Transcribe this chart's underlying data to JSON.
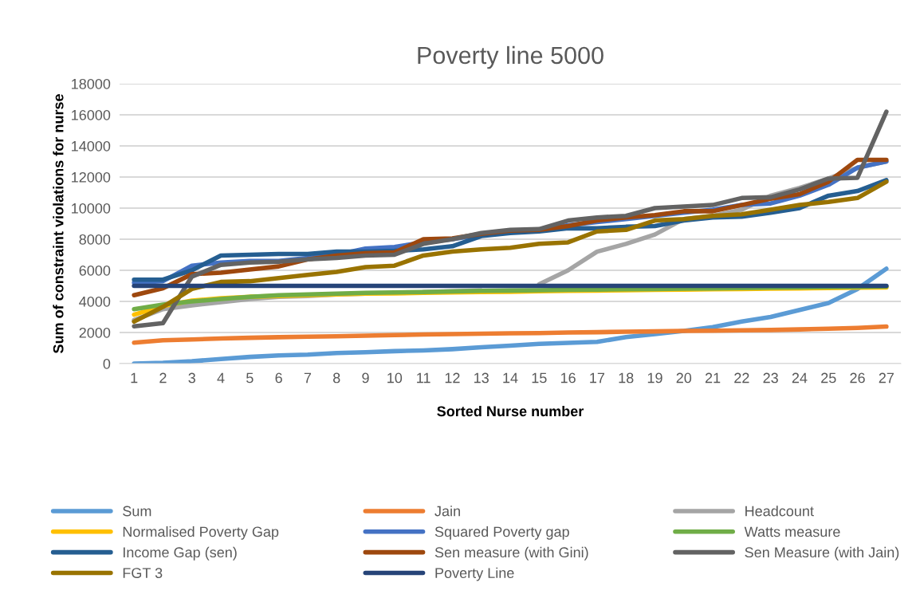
{
  "chart_data": {
    "type": "line",
    "title": "Poverty line 5000",
    "xlabel": "Sorted Nurse number",
    "ylabel": "Sum of constraint violations for nurse",
    "categories": [
      "1",
      "2",
      "3",
      "4",
      "5",
      "6",
      "7",
      "8",
      "9",
      "10",
      "11",
      "12",
      "13",
      "14",
      "15",
      "16",
      "17",
      "18",
      "19",
      "20",
      "21",
      "22",
      "23",
      "24",
      "25",
      "26",
      "27"
    ],
    "ylim": [
      0,
      18000
    ],
    "yticks": [
      0,
      2000,
      4000,
      6000,
      8000,
      10000,
      12000,
      14000,
      16000,
      18000
    ],
    "grid": "y",
    "legend": "bottom",
    "marker": "none",
    "line_style": "solid",
    "series": [
      {
        "name": "Sum",
        "color": "#5b9bd5",
        "values": [
          0,
          50,
          150,
          300,
          430,
          530,
          580,
          680,
          730,
          800,
          850,
          930,
          1050,
          1150,
          1270,
          1330,
          1400,
          1700,
          1900,
          2100,
          2350,
          2700,
          3000,
          3450,
          3900,
          4800,
          6100
        ]
      },
      {
        "name": "Jain",
        "color": "#ed7d31",
        "values": [
          1350,
          1500,
          1550,
          1620,
          1660,
          1700,
          1730,
          1760,
          1790,
          1830,
          1870,
          1900,
          1920,
          1950,
          1960,
          2000,
          2020,
          2050,
          2070,
          2100,
          2120,
          2140,
          2160,
          2200,
          2240,
          2290,
          2380
        ]
      },
      {
        "name": "Headcount",
        "color": "#a5a5a5",
        "values": [
          2800,
          3500,
          3750,
          3950,
          4150,
          4300,
          4350,
          4450,
          4500,
          null,
          4600,
          4650,
          4700,
          null,
          5100,
          6000,
          7200,
          7700,
          8300,
          9300,
          9500,
          9900,
          10800,
          11300,
          11900,
          12600,
          13000
        ]
      },
      {
        "name": "Normalised Poverty Gap",
        "color": "#ffc000",
        "values": [
          3150,
          3700,
          4050,
          4200,
          4300,
          4350,
          4400,
          4450,
          4500,
          4520,
          4550,
          4580,
          4600,
          4620,
          4650,
          4680,
          4700,
          4720,
          4740,
          4760,
          4780,
          4800,
          4820,
          4840,
          4860,
          4880,
          4900
        ]
      },
      {
        "name": "Squared Poverty gap",
        "color": "#4472c4",
        "values": [
          5200,
          5300,
          6300,
          6500,
          6600,
          6600,
          6800,
          7000,
          7400,
          7500,
          7800,
          8000,
          8300,
          8500,
          8600,
          8900,
          9100,
          9300,
          9500,
          9700,
          9900,
          10200,
          10300,
          10800,
          11500,
          12600,
          13000
        ]
      },
      {
        "name": "Watts measure",
        "color": "#70ad47",
        "values": [
          3500,
          3800,
          4000,
          4150,
          4300,
          4400,
          4450,
          4500,
          4550,
          4580,
          4600,
          4640,
          4680,
          4700,
          4720,
          4740,
          4760,
          4780,
          4800,
          4820,
          4840,
          4860,
          4880,
          4900,
          4920,
          4940,
          4960
        ]
      },
      {
        "name": "Income Gap (sen)",
        "color": "#255e91",
        "values": [
          5400,
          5400,
          6000,
          6950,
          7000,
          7050,
          7050,
          7200,
          7200,
          7250,
          7350,
          7550,
          8200,
          8400,
          8500,
          8700,
          8700,
          8800,
          8850,
          9200,
          9400,
          9450,
          9700,
          10000,
          10800,
          11100,
          11800
        ]
      },
      {
        "name": "Sen measure (with Gini)",
        "color": "#9e480e",
        "values": [
          4400,
          4850,
          5750,
          5850,
          6050,
          6250,
          6700,
          6950,
          7100,
          7150,
          8000,
          8050,
          8350,
          8550,
          8600,
          8850,
          9200,
          9400,
          9550,
          9800,
          9800,
          10200,
          10600,
          10900,
          11700,
          13100,
          13100
        ]
      },
      {
        "name": "Sen Measure (with Jain)",
        "color": "#636363",
        "values": [
          2400,
          2600,
          5600,
          6350,
          6500,
          6550,
          6700,
          6800,
          6950,
          7000,
          7700,
          8000,
          8400,
          8600,
          8650,
          9200,
          9400,
          9500,
          10000,
          10100,
          10200,
          10650,
          10700,
          11200,
          11900,
          11950,
          16200
        ]
      },
      {
        "name": "FGT 3",
        "color": "#997300",
        "values": [
          2700,
          3650,
          4800,
          5250,
          5300,
          5500,
          5700,
          5900,
          6200,
          6300,
          6950,
          7200,
          7350,
          7450,
          7700,
          7800,
          8500,
          8600,
          9200,
          9300,
          9500,
          9600,
          9900,
          10200,
          10400,
          10650,
          11700
        ]
      },
      {
        "name": "Poverty Line",
        "color": "#264478",
        "values": [
          5000,
          5000,
          5000,
          5000,
          5000,
          5000,
          5000,
          5000,
          5000,
          5000,
          5000,
          5000,
          5000,
          5000,
          5000,
          5000,
          5000,
          5000,
          5000,
          5000,
          5000,
          5000,
          5000,
          5000,
          5000,
          5000,
          5000
        ]
      }
    ]
  }
}
